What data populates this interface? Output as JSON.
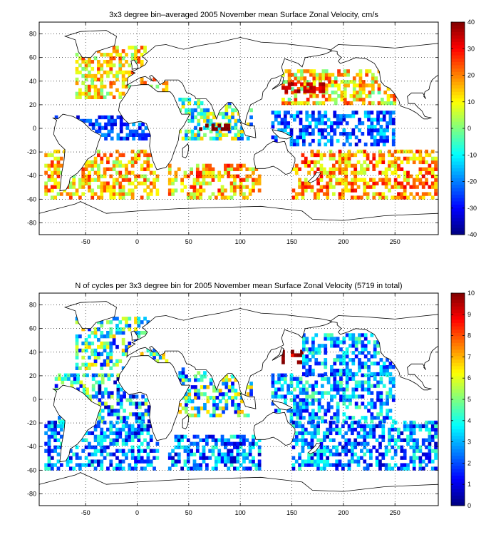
{
  "chart_data": [
    {
      "type": "heatmap",
      "title": "3x3 degree bin–averaged 2005 November mean Surface Zonal Velocity, cm/s",
      "xlabel": "",
      "ylabel": "",
      "xlim": [
        -95,
        292
      ],
      "ylim": [
        -90,
        90
      ],
      "x_ticks": [
        "-50",
        "0",
        "50",
        "100",
        "150",
        "200",
        "250"
      ],
      "x_tick_values": [
        -50,
        0,
        50,
        100,
        150,
        200,
        250
      ],
      "y_ticks": [
        "80",
        "60",
        "40",
        "20",
        "0",
        "-20",
        "-40",
        "-60",
        "-80"
      ],
      "y_tick_values": [
        80,
        60,
        40,
        20,
        0,
        -20,
        -40,
        -60,
        -80
      ],
      "grid": true,
      "colorbar": {
        "min": -40,
        "max": 40,
        "ticks": [
          "40",
          "30",
          "20",
          "10",
          "0",
          "-10",
          "-20",
          "-30",
          "-40"
        ],
        "tick_values": [
          40,
          30,
          20,
          10,
          0,
          -10,
          -20,
          -30,
          -40
        ],
        "colormap": "jet"
      },
      "regions": [
        {
          "x": [
            -60,
            30
          ],
          "y": [
            25,
            70
          ],
          "value": 12,
          "spread": 14
        },
        {
          "x": [
            -80,
            20
          ],
          "y": [
            -10,
            10
          ],
          "value": -25,
          "spread": 10
        },
        {
          "x": [
            -90,
            20
          ],
          "y": [
            -60,
            -20
          ],
          "value": 14,
          "spread": 14
        },
        {
          "x": [
            40,
            110
          ],
          "y": [
            -10,
            25
          ],
          "value": -5,
          "spread": 20
        },
        {
          "x": [
            60,
            90
          ],
          "y": [
            -2,
            4
          ],
          "value": 40,
          "spread": 2
        },
        {
          "x": [
            30,
            120
          ],
          "y": [
            -60,
            -30
          ],
          "value": 15,
          "spread": 15
        },
        {
          "x": [
            130,
            250
          ],
          "y": [
            -15,
            15
          ],
          "value": -22,
          "spread": 12
        },
        {
          "x": [
            140,
            250
          ],
          "y": [
            20,
            50
          ],
          "value": 12,
          "spread": 16
        },
        {
          "x": [
            140,
            180
          ],
          "y": [
            30,
            38
          ],
          "value": 35,
          "spread": 5
        },
        {
          "x": [
            150,
            290
          ],
          "y": [
            -60,
            -20
          ],
          "value": 18,
          "spread": 14
        }
      ]
    },
    {
      "type": "heatmap",
      "title": "N of cycles per 3x3 degree bin for 2005 November mean Surface Zonal Velocity (5719 in total)",
      "xlabel": "",
      "ylabel": "",
      "xlim": [
        -95,
        292
      ],
      "ylim": [
        -90,
        90
      ],
      "x_ticks": [
        "-50",
        "0",
        "50",
        "100",
        "150",
        "200",
        "250"
      ],
      "x_tick_values": [
        -50,
        0,
        50,
        100,
        150,
        200,
        250
      ],
      "y_ticks": [
        "80",
        "60",
        "40",
        "20",
        "0",
        "-20",
        "-40",
        "-60",
        "-80"
      ],
      "y_tick_values": [
        80,
        60,
        40,
        20,
        0,
        -20,
        -40,
        -60,
        -80
      ],
      "grid": true,
      "total_cycles": 5719,
      "colorbar": {
        "min": 0,
        "max": 10,
        "ticks": [
          "10",
          "9",
          "8",
          "7",
          "6",
          "5",
          "4",
          "3",
          "2",
          "1",
          "0"
        ],
        "tick_values": [
          10,
          9,
          8,
          7,
          6,
          5,
          4,
          3,
          2,
          1,
          0
        ],
        "colormap": "jet"
      },
      "regions": [
        {
          "x": [
            -60,
            30
          ],
          "y": [
            25,
            70
          ],
          "value": 4,
          "spread": 3
        },
        {
          "x": [
            -80,
            20
          ],
          "y": [
            -20,
            20
          ],
          "value": 3,
          "spread": 3
        },
        {
          "x": [
            -90,
            20
          ],
          "y": [
            -60,
            -20
          ],
          "value": 2.5,
          "spread": 2
        },
        {
          "x": [
            40,
            110
          ],
          "y": [
            -15,
            25
          ],
          "value": 4,
          "spread": 3
        },
        {
          "x": [
            30,
            120
          ],
          "y": [
            -60,
            -30
          ],
          "value": 2.5,
          "spread": 2
        },
        {
          "x": [
            130,
            250
          ],
          "y": [
            -20,
            20
          ],
          "value": 3,
          "spread": 2
        },
        {
          "x": [
            140,
            160
          ],
          "y": [
            30,
            42
          ],
          "value": 9.5,
          "spread": 1
        },
        {
          "x": [
            160,
            250
          ],
          "y": [
            20,
            55
          ],
          "value": 3,
          "spread": 2
        },
        {
          "x": [
            150,
            290
          ],
          "y": [
            -60,
            -20
          ],
          "value": 2.5,
          "spread": 2
        }
      ]
    }
  ]
}
